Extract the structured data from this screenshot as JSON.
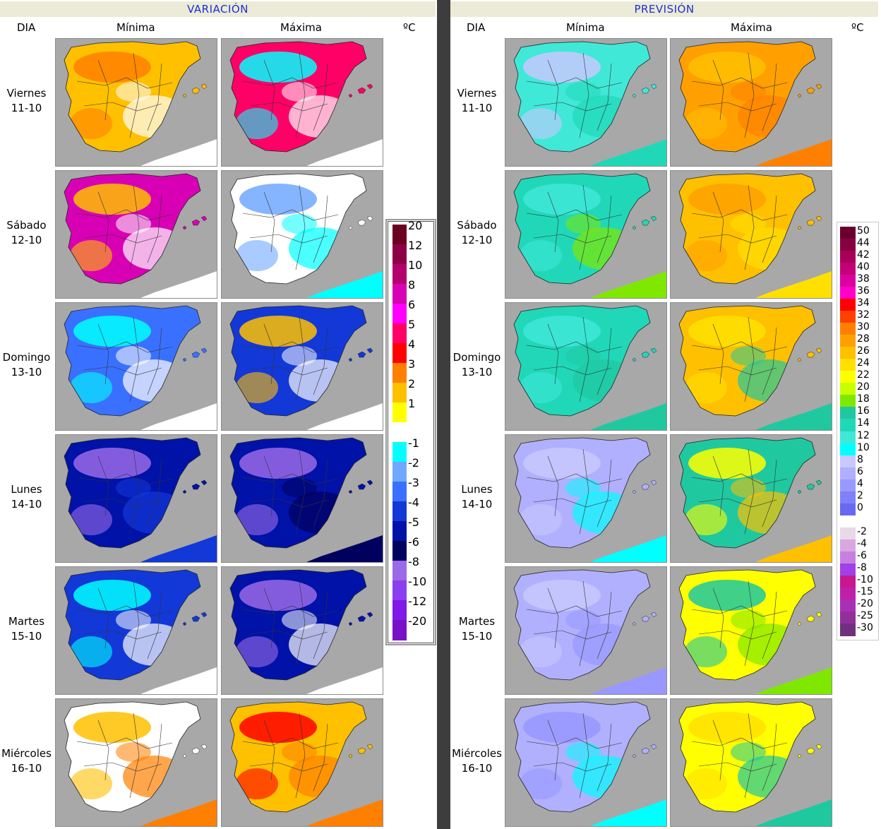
{
  "left_panel": {
    "title": "VARIACIÓN",
    "headers": {
      "day": "DIA",
      "min": "Mínima",
      "max": "Máxima",
      "unit": "ºC"
    },
    "legend": [
      {
        "label": "20",
        "color": "#6b0020"
      },
      {
        "label": "12",
        "color": "#8e0046"
      },
      {
        "label": "10",
        "color": "#b4006e"
      },
      {
        "label": "8",
        "color": "#d800b4"
      },
      {
        "label": "6",
        "color": "#ff00ff"
      },
      {
        "label": "5",
        "color": "#ff0066"
      },
      {
        "label": "4",
        "color": "#ff0000"
      },
      {
        "label": "3",
        "color": "#ff8000"
      },
      {
        "label": "2",
        "color": "#ffc000"
      },
      {
        "label": "1",
        "color": "#ffff00"
      },
      {
        "label": "",
        "color": "#ffffff"
      },
      {
        "label": "-1",
        "color": "#00ffff"
      },
      {
        "label": "-2",
        "color": "#70a8ff"
      },
      {
        "label": "-3",
        "color": "#3a70ff"
      },
      {
        "label": "-4",
        "color": "#1238d8"
      },
      {
        "label": "-5",
        "color": "#0012a8"
      },
      {
        "label": "-6",
        "color": "#00005e"
      },
      {
        "label": "-8",
        "color": "#9a6ae8"
      },
      {
        "label": "-10",
        "color": "#8a40ee"
      },
      {
        "label": "-12",
        "color": "#8018e8"
      },
      {
        "label": "-20",
        "color": "#7a10c8"
      }
    ]
  },
  "right_panel": {
    "title": "PREVISIÓN",
    "headers": {
      "day": "DIA",
      "min": "Mínima",
      "max": "Máxima",
      "unit": "ºC"
    },
    "legend": [
      {
        "label": "50",
        "color": "#6a0030"
      },
      {
        "label": "44",
        "color": "#880040"
      },
      {
        "label": "42",
        "color": "#a8005a"
      },
      {
        "label": "40",
        "color": "#c40078"
      },
      {
        "label": "38",
        "color": "#dc00a0"
      },
      {
        "label": "36",
        "color": "#ff00c8"
      },
      {
        "label": "34",
        "color": "#ff0000"
      },
      {
        "label": "32",
        "color": "#ff4000"
      },
      {
        "label": "30",
        "color": "#ff8000"
      },
      {
        "label": "28",
        "color": "#ffa000"
      },
      {
        "label": "26",
        "color": "#ffc000"
      },
      {
        "label": "24",
        "color": "#ffe000"
      },
      {
        "label": "22",
        "color": "#ffff00"
      },
      {
        "label": "20",
        "color": "#c8ff00"
      },
      {
        "label": "18",
        "color": "#80e800"
      },
      {
        "label": "16",
        "color": "#20c8a0"
      },
      {
        "label": "14",
        "color": "#20d8b8"
      },
      {
        "label": "12",
        "color": "#40e8d8"
      },
      {
        "label": "10",
        "color": "#00ffff"
      },
      {
        "label": "8",
        "color": "#c8c8ff"
      },
      {
        "label": "6",
        "color": "#b0b0ff"
      },
      {
        "label": "4",
        "color": "#9898ff"
      },
      {
        "label": "2",
        "color": "#8080f8"
      },
      {
        "label": "0",
        "color": "#6868f0"
      },
      {
        "label": "",
        "color": "#ffffff"
      },
      {
        "label": "-2",
        "color": "#e8d8e8"
      },
      {
        "label": "-4",
        "color": "#d8a8e0"
      },
      {
        "label": "-6",
        "color": "#c880e0"
      },
      {
        "label": "-8",
        "color": "#a040e8"
      },
      {
        "label": "-10",
        "color": "#c81890"
      },
      {
        "label": "-15",
        "color": "#c020a8"
      },
      {
        "label": "-20",
        "color": "#a830b8"
      },
      {
        "label": "-25",
        "color": "#903098"
      },
      {
        "label": "-30",
        "color": "#703080"
      }
    ]
  },
  "days": [
    {
      "name": "Viernes",
      "date": "11-10",
      "var_min": [
        "#ffc000",
        "#ff8000",
        "#ffffff"
      ],
      "var_max": [
        "#ff0066",
        "#00ffff",
        "#ffffff"
      ],
      "prev_min": [
        "#40e8d8",
        "#c8c8ff",
        "#20d8b8"
      ],
      "prev_max": [
        "#ffa000",
        "#ffc000",
        "#ff8000"
      ]
    },
    {
      "name": "Sábado",
      "date": "12-10",
      "var_min": [
        "#d800b4",
        "#ffc000",
        "#ffffff"
      ],
      "var_max": [
        "#ffffff",
        "#70a8ff",
        "#00ffff"
      ],
      "prev_min": [
        "#20d8b8",
        "#40e8d8",
        "#80e800"
      ],
      "prev_max": [
        "#ffc000",
        "#ffa000",
        "#ffe000"
      ]
    },
    {
      "name": "Domingo",
      "date": "13-10",
      "var_min": [
        "#3a70ff",
        "#00ffff",
        "#ffffff"
      ],
      "var_max": [
        "#1238d8",
        "#ffc000",
        "#ffffff"
      ],
      "prev_min": [
        "#20d8b8",
        "#40e8d8",
        "#20c8a0"
      ],
      "prev_max": [
        "#ffc000",
        "#ffe000",
        "#20c8a0"
      ]
    },
    {
      "name": "Lunes",
      "date": "14-10",
      "var_min": [
        "#0012a8",
        "#9a6ae8",
        "#1238d8"
      ],
      "var_max": [
        "#0012a8",
        "#9a6ae8",
        "#00005e"
      ],
      "prev_min": [
        "#b0b0ff",
        "#c8c8ff",
        "#00ffff"
      ],
      "prev_max": [
        "#20c8a0",
        "#ffff00",
        "#ffc000"
      ]
    },
    {
      "name": "Martes",
      "date": "15-10",
      "var_min": [
        "#1238d8",
        "#00ffff",
        "#ffffff"
      ],
      "var_max": [
        "#0012a8",
        "#9a6ae8",
        "#ffffff"
      ],
      "prev_min": [
        "#b0b0ff",
        "#c8c8ff",
        "#9898ff"
      ],
      "prev_max": [
        "#ffff00",
        "#20c8a0",
        "#80e800"
      ]
    },
    {
      "name": "Miércoles",
      "date": "16-10",
      "var_min": [
        "#ffffff",
        "#ffc000",
        "#ff8000"
      ],
      "var_max": [
        "#ffc000",
        "#ff0000",
        "#ff8000"
      ],
      "prev_min": [
        "#b0b0ff",
        "#9898ff",
        "#00ffff"
      ],
      "prev_max": [
        "#ffff00",
        "#ffe000",
        "#20c8a0"
      ]
    }
  ]
}
